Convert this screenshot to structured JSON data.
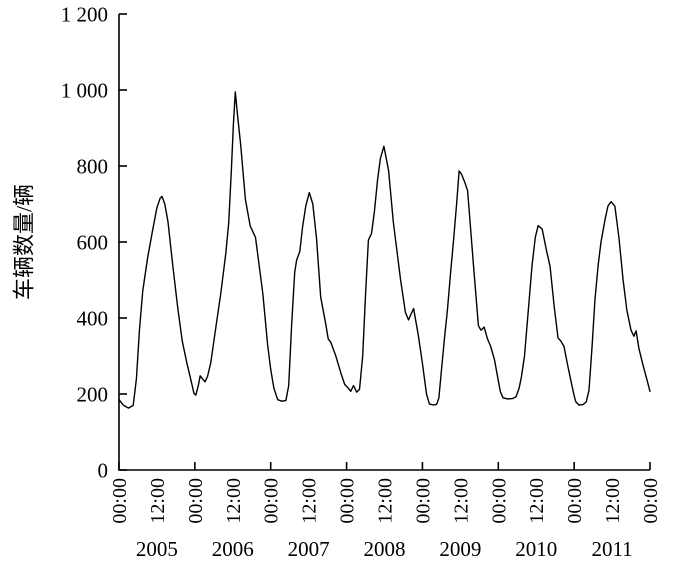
{
  "chart_data": {
    "type": "line",
    "title": "",
    "xlabel": "",
    "ylabel": "车辆数量/辆",
    "x_unit": "time (hh:mm) over seven days",
    "x_range_hours": [
      0,
      168
    ],
    "ylim": [
      0,
      1200
    ],
    "grid": false,
    "legend_visible": false,
    "line_color": "#000000",
    "axis_color": "#000000",
    "background_color": "#ffffff",
    "y_ticks": [
      0,
      200,
      400,
      600,
      800,
      1000,
      1200
    ],
    "y_tick_labels": [
      "0",
      "200",
      "400",
      "600",
      "800",
      "1 000",
      "1 200"
    ],
    "x_major_tick_hours": [
      0,
      24,
      48,
      72,
      96,
      120,
      144,
      168
    ],
    "x_tick_label_hours": [
      0,
      12,
      24,
      36,
      48,
      60,
      72,
      84,
      96,
      108,
      120,
      132,
      144,
      156,
      168
    ],
    "x_tick_labels": [
      "00:00",
      "12:00",
      "00:00",
      "12:00",
      "00:00",
      "12:00",
      "00:00",
      "12:00",
      "00:00",
      "12:00",
      "00:00",
      "12:00",
      "00:00",
      "12:00",
      "00:00"
    ],
    "day_labels": [
      "2005",
      "2006",
      "2007",
      "2008",
      "2009",
      "2010",
      "2011"
    ],
    "series": [
      {
        "name": "车辆数量",
        "points": [
          [
            0,
            185
          ],
          [
            1.5,
            170
          ],
          [
            3,
            163
          ],
          [
            4.5,
            170
          ],
          [
            5.5,
            240
          ],
          [
            6.5,
            370
          ],
          [
            7.5,
            470
          ],
          [
            9,
            555
          ],
          [
            10.5,
            625
          ],
          [
            12,
            690
          ],
          [
            13,
            715
          ],
          [
            13.6,
            720
          ],
          [
            14.5,
            700
          ],
          [
            15.5,
            653
          ],
          [
            17,
            540
          ],
          [
            18.5,
            432
          ],
          [
            20,
            340
          ],
          [
            21.5,
            280
          ],
          [
            23,
            228
          ],
          [
            23.7,
            202
          ],
          [
            24.3,
            197
          ],
          [
            25.1,
            222
          ],
          [
            25.7,
            248
          ],
          [
            26.4,
            240
          ],
          [
            27.2,
            232
          ],
          [
            28,
            246
          ],
          [
            29,
            281
          ],
          [
            30.6,
            373
          ],
          [
            32.2,
            465
          ],
          [
            33.8,
            570
          ],
          [
            34.7,
            650
          ],
          [
            35.5,
            780
          ],
          [
            36.2,
            910
          ],
          [
            36.8,
            995
          ],
          [
            37.5,
            935
          ],
          [
            38.5,
            855
          ],
          [
            40,
            712
          ],
          [
            41.5,
            642
          ],
          [
            43.2,
            612
          ],
          [
            45.5,
            465
          ],
          [
            47,
            330
          ],
          [
            48,
            265
          ],
          [
            49,
            215
          ],
          [
            50.2,
            185
          ],
          [
            51.5,
            181
          ],
          [
            52.8,
            183
          ],
          [
            53.7,
            222
          ],
          [
            54.6,
            380
          ],
          [
            55.6,
            520
          ],
          [
            56.2,
            552
          ],
          [
            57.2,
            575
          ],
          [
            58.1,
            640
          ],
          [
            59.1,
            695
          ],
          [
            60.2,
            730
          ],
          [
            61.3,
            700
          ],
          [
            62.5,
            610
          ],
          [
            63.8,
            455
          ],
          [
            65.4,
            385
          ],
          [
            66.2,
            345
          ],
          [
            67,
            336
          ],
          [
            68.6,
            300
          ],
          [
            70.2,
            255
          ],
          [
            71.4,
            225
          ],
          [
            72.3,
            218
          ],
          [
            73.3,
            207
          ],
          [
            74.2,
            222
          ],
          [
            75.2,
            205
          ],
          [
            76.1,
            212
          ],
          [
            77.1,
            300
          ],
          [
            78,
            460
          ],
          [
            78.9,
            605
          ],
          [
            79.9,
            622
          ],
          [
            80.8,
            680
          ],
          [
            81.8,
            762
          ],
          [
            82.7,
            820
          ],
          [
            83.8,
            852
          ],
          [
            85.3,
            788
          ],
          [
            86.8,
            653
          ],
          [
            89.1,
            500
          ],
          [
            90.6,
            415
          ],
          [
            91.6,
            395
          ],
          [
            93.2,
            425
          ],
          [
            94.7,
            355
          ],
          [
            96,
            281
          ],
          [
            97.3,
            200
          ],
          [
            98.2,
            174
          ],
          [
            99.5,
            171
          ],
          [
            100.5,
            173
          ],
          [
            101.2,
            190
          ],
          [
            102.1,
            270
          ],
          [
            103,
            350
          ],
          [
            103.9,
            420
          ],
          [
            104.9,
            520
          ],
          [
            105.8,
            600
          ],
          [
            106.8,
            700
          ],
          [
            107.6,
            787
          ],
          [
            108.4,
            778
          ],
          [
            109.4,
            757
          ],
          [
            110.3,
            735
          ],
          [
            112.2,
            535
          ],
          [
            113.7,
            380
          ],
          [
            114.5,
            368
          ],
          [
            115.5,
            376
          ],
          [
            116.6,
            345
          ],
          [
            117.6,
            325
          ],
          [
            118.8,
            290
          ],
          [
            120,
            235
          ],
          [
            120.7,
            205
          ],
          [
            121.5,
            190
          ],
          [
            123,
            187
          ],
          [
            124.5,
            188
          ],
          [
            125.6,
            193
          ],
          [
            126.6,
            215
          ],
          [
            127.3,
            245
          ],
          [
            128.3,
            300
          ],
          [
            129.5,
            420
          ],
          [
            130.7,
            540
          ],
          [
            131.7,
            612
          ],
          [
            132.6,
            643
          ],
          [
            133.9,
            634
          ],
          [
            135.2,
            580
          ],
          [
            136.4,
            535
          ],
          [
            137.7,
            430
          ],
          [
            138.9,
            348
          ],
          [
            139.9,
            338
          ],
          [
            140.8,
            325
          ],
          [
            142.1,
            270
          ],
          [
            143.1,
            230
          ],
          [
            144,
            196
          ],
          [
            144.5,
            180
          ],
          [
            145.5,
            171
          ],
          [
            146.8,
            172
          ],
          [
            147.8,
            179
          ],
          [
            148.7,
            210
          ],
          [
            149.7,
            330
          ],
          [
            150.6,
            450
          ],
          [
            151.6,
            540
          ],
          [
            152.5,
            600
          ],
          [
            153.8,
            660
          ],
          [
            154.7,
            695
          ],
          [
            155.7,
            706
          ],
          [
            156.9,
            694
          ],
          [
            158.2,
            610
          ],
          [
            159.5,
            500
          ],
          [
            160.7,
            420
          ],
          [
            162,
            368
          ],
          [
            162.9,
            352
          ],
          [
            163.6,
            366
          ],
          [
            164.5,
            320
          ],
          [
            165.8,
            276
          ],
          [
            167.1,
            235
          ],
          [
            168,
            207
          ]
        ]
      }
    ]
  }
}
